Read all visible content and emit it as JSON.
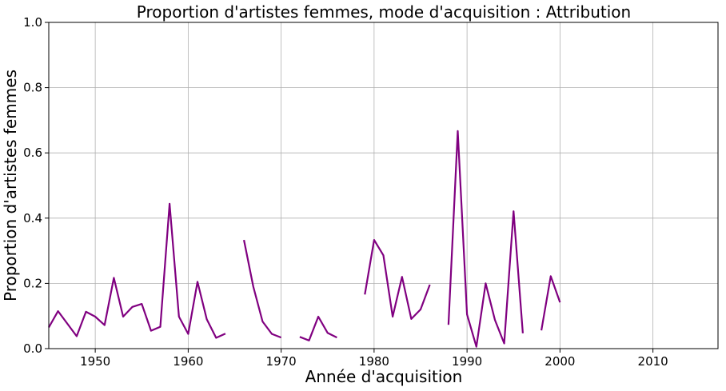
{
  "chart_data": {
    "type": "line",
    "title": "Proportion d'artistes femmes, mode d'acquisition : Attribution",
    "xlabel": "Année d'acquisition",
    "ylabel": "Proportion d'artistes femmes",
    "xlim": [
      1945,
      2017
    ],
    "ylim": [
      0,
      1.0
    ],
    "xticks": [
      1950,
      1960,
      1970,
      1980,
      1990,
      2000,
      2010
    ],
    "yticks": [
      0.0,
      0.2,
      0.4,
      0.6,
      0.8,
      1.0
    ],
    "ytick_labels": [
      "0.0",
      "0.2",
      "0.4",
      "0.6",
      "0.8",
      "1.0"
    ],
    "grid": true,
    "colors": {
      "series": "#800080"
    },
    "series": [
      {
        "segments": [
          [
            [
              1945,
              0.065
            ],
            [
              1946,
              0.115
            ],
            [
              1948,
              0.038
            ],
            [
              1949,
              0.113
            ],
            [
              1950,
              0.098
            ],
            [
              1951,
              0.072
            ],
            [
              1952,
              0.217
            ],
            [
              1953,
              0.098
            ],
            [
              1954,
              0.128
            ],
            [
              1955,
              0.137
            ],
            [
              1956,
              0.055
            ],
            [
              1957,
              0.067
            ],
            [
              1958,
              0.444
            ],
            [
              1959,
              0.098
            ],
            [
              1960,
              0.045
            ],
            [
              1961,
              0.205
            ],
            [
              1962,
              0.09
            ],
            [
              1963,
              0.033
            ],
            [
              1964,
              0.046
            ]
          ],
          [
            [
              1966,
              0.333
            ],
            [
              1967,
              0.19
            ],
            [
              1968,
              0.083
            ],
            [
              1969,
              0.045
            ],
            [
              1970,
              0.034
            ]
          ],
          [
            [
              1972,
              0.036
            ],
            [
              1973,
              0.025
            ],
            [
              1974,
              0.098
            ],
            [
              1975,
              0.048
            ],
            [
              1976,
              0.034
            ]
          ],
          [
            [
              1979,
              0.166
            ],
            [
              1980,
              0.333
            ],
            [
              1981,
              0.286
            ],
            [
              1982,
              0.098
            ],
            [
              1983,
              0.22
            ],
            [
              1984,
              0.091
            ],
            [
              1985,
              0.12
            ],
            [
              1986,
              0.196
            ]
          ],
          [
            [
              1988,
              0.073
            ],
            [
              1989,
              0.667
            ],
            [
              1990,
              0.105
            ],
            [
              1991,
              0.006
            ],
            [
              1992,
              0.2
            ],
            [
              1993,
              0.088
            ],
            [
              1994,
              0.016
            ],
            [
              1995,
              0.421
            ],
            [
              1996,
              0.047
            ]
          ],
          [
            [
              1998,
              0.056
            ],
            [
              1999,
              0.222
            ],
            [
              2000,
              0.142
            ]
          ]
        ]
      }
    ]
  }
}
